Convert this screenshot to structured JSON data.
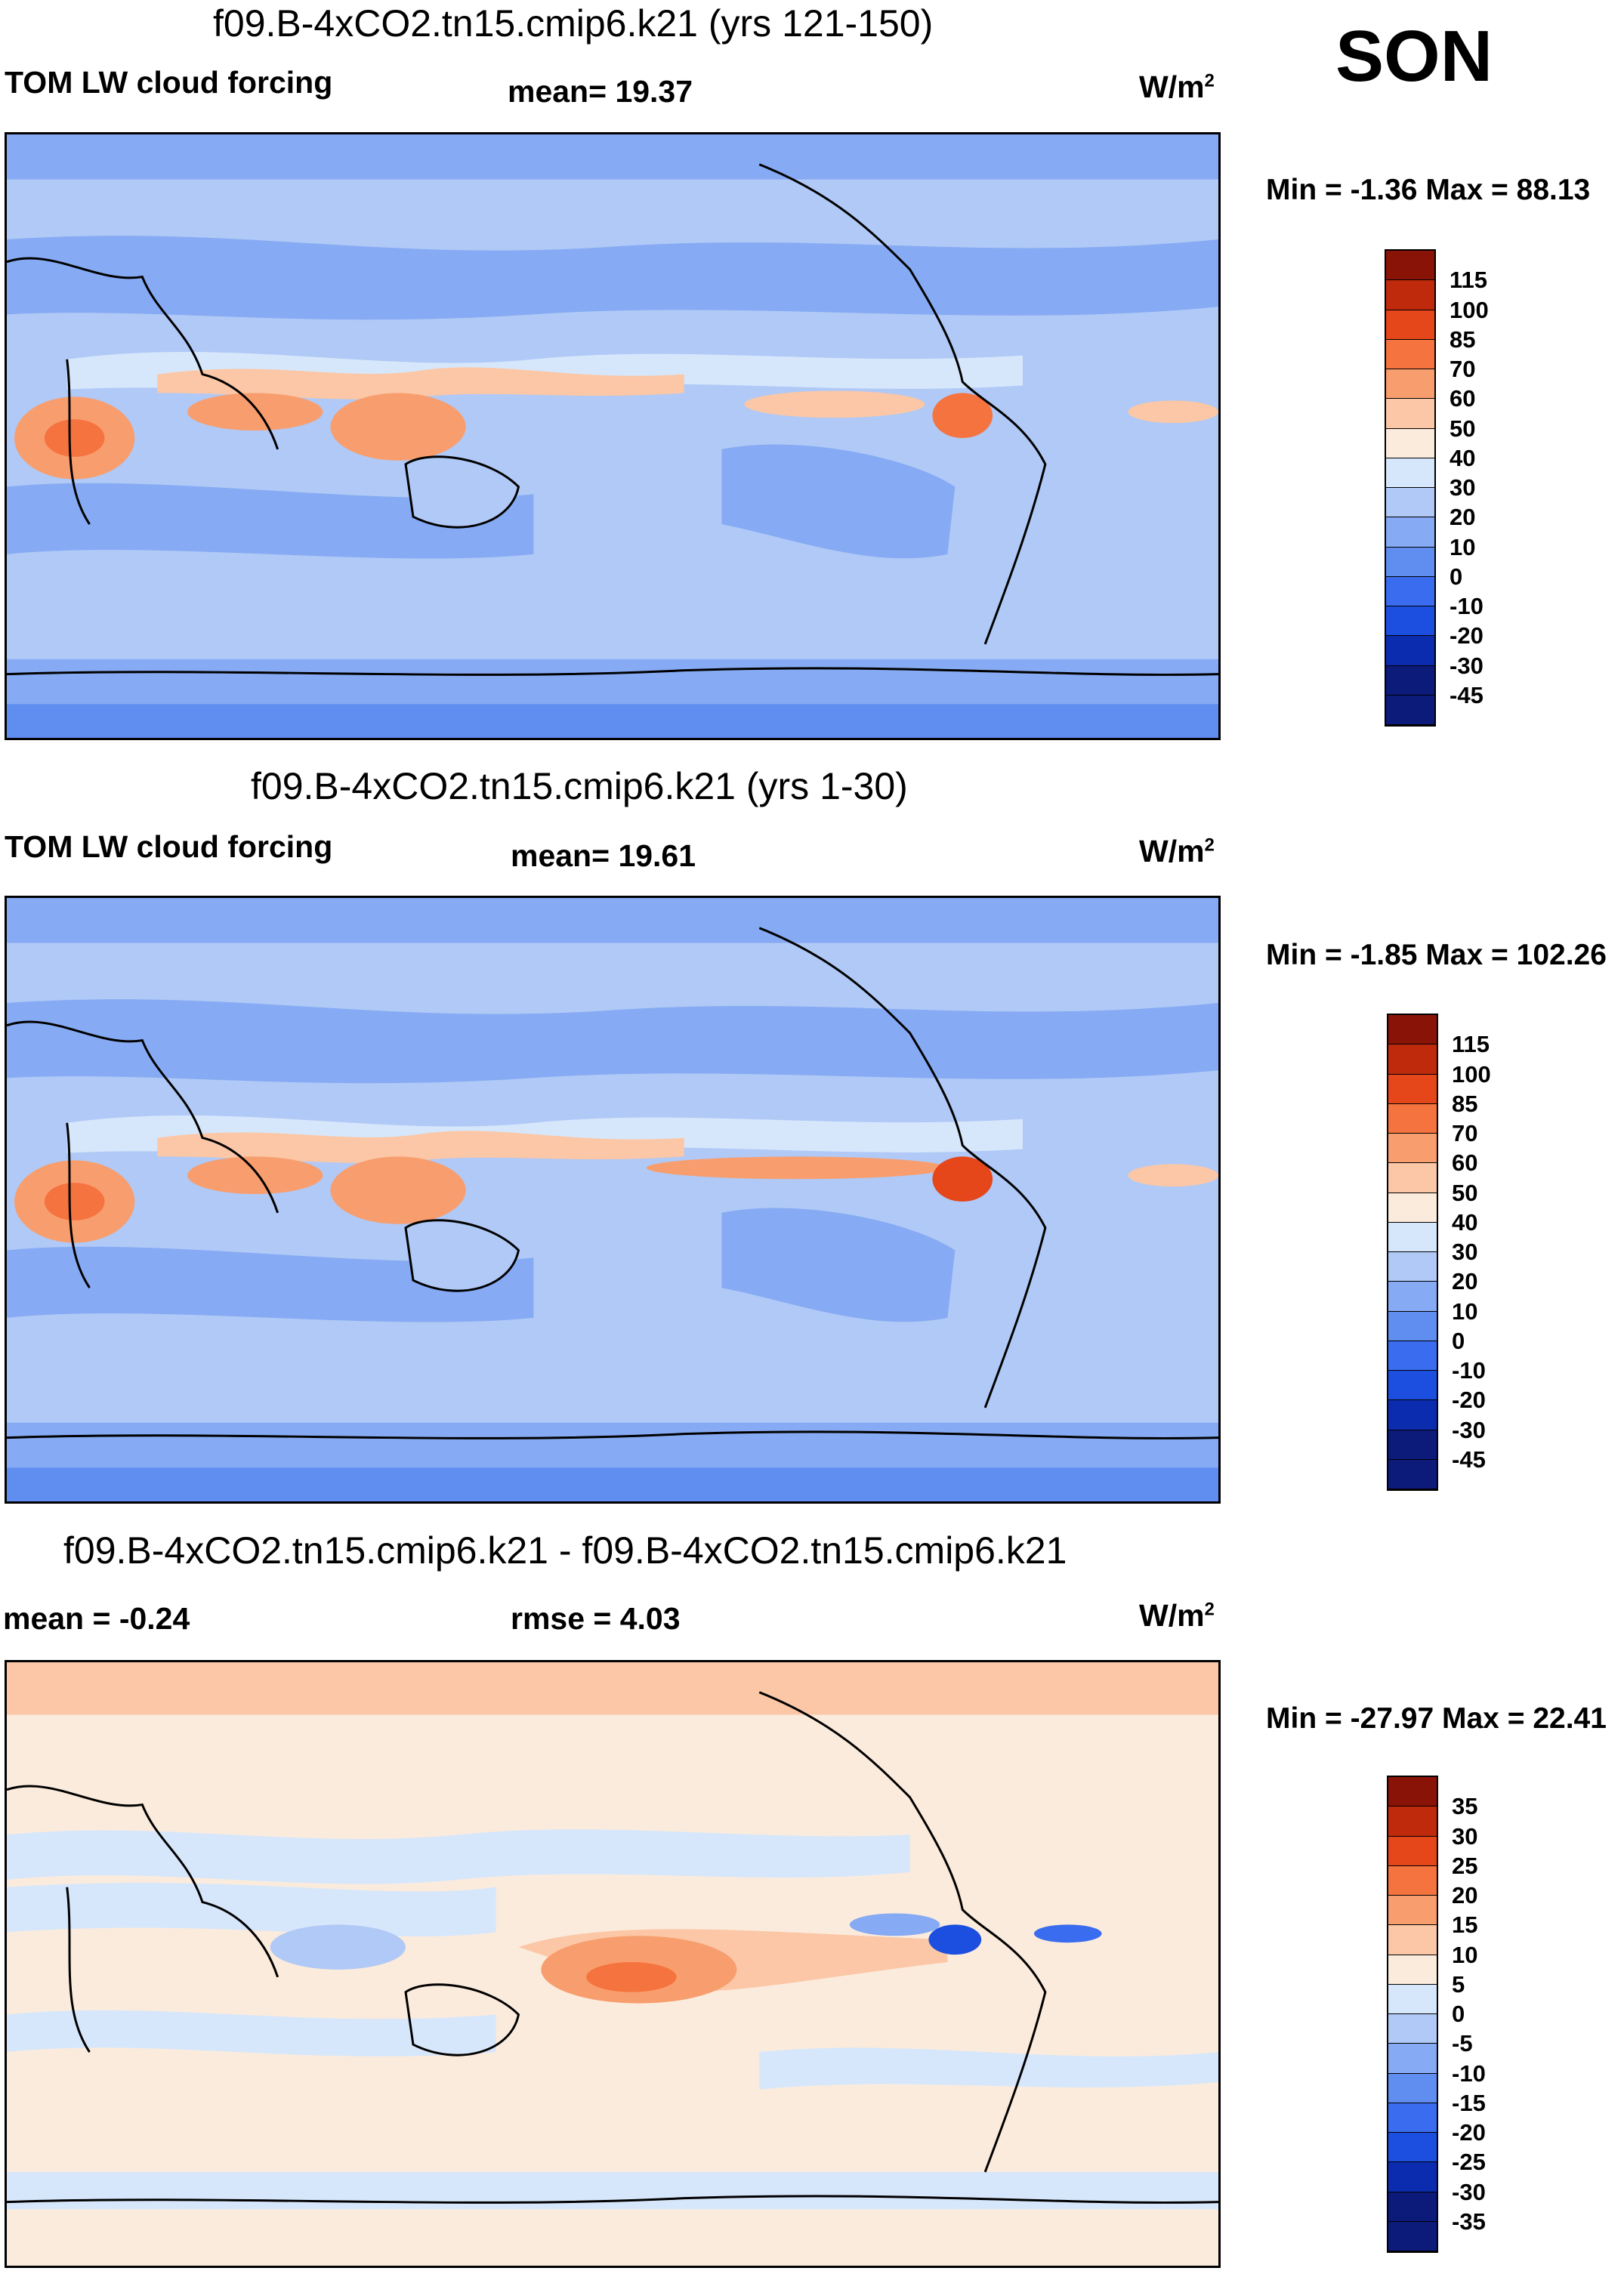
{
  "season": "SON",
  "units_base": "W/m",
  "units_exp": "2",
  "colors": {
    "main": [
      "#0c1a7a",
      "#0c2cb0",
      "#1c4fe0",
      "#3a6cf0",
      "#5f8ef0",
      "#86aaf3",
      "#b0c9f6",
      "#d7e7fb",
      "#fbebdc",
      "#fbc7a6",
      "#f89e6e",
      "#f5733f",
      "#e5461a",
      "#c02a0c",
      "#8a1308"
    ],
    "diff": [
      "#0c1a7a",
      "#0c2cb0",
      "#1c4fe0",
      "#3a6cf0",
      "#5f8ef0",
      "#86aaf3",
      "#b0c9f6",
      "#d7e7fb",
      "#fbebdc",
      "#fbc7a6",
      "#f89e6e",
      "#f5733f",
      "#e5461a",
      "#c02a0c",
      "#8a1308"
    ]
  },
  "panels": [
    {
      "title": "f09.B-4xCO2.tn15.cmip6.k21 (yrs 121-150)",
      "left_label": "TOM LW cloud forcing",
      "mid_label": "mean=  19.37",
      "minmax": "Min =  -1.36 Max =  88.13",
      "ticks": [
        "115",
        "100",
        "85",
        "70",
        "60",
        "50",
        "40",
        "30",
        "20",
        "10",
        "0",
        "-10",
        "-20",
        "-30",
        "-45"
      ]
    },
    {
      "title": "f09.B-4xCO2.tn15.cmip6.k21 (yrs 1-30)",
      "left_label": "TOM LW cloud forcing",
      "mid_label": "mean=  19.61",
      "minmax": "Min =  -1.85 Max = 102.26",
      "ticks": [
        "115",
        "100",
        "85",
        "70",
        "60",
        "50",
        "40",
        "30",
        "20",
        "10",
        "0",
        "-10",
        "-20",
        "-30",
        "-45"
      ]
    },
    {
      "title": "f09.B-4xCO2.tn15.cmip6.k21 - f09.B-4xCO2.tn15.cmip6.k21",
      "left_label": "mean =  -0.24",
      "mid_label": "rmse =    4.03",
      "minmax": "Min = -27.97 Max =  22.41",
      "ticks": [
        "35",
        "30",
        "25",
        "20",
        "15",
        "10",
        "5",
        "0",
        "-5",
        "-10",
        "-15",
        "-20",
        "-25",
        "-30",
        "-35"
      ]
    }
  ],
  "chart_data": [
    {
      "type": "heatmap",
      "title": "f09.B-4xCO2.tn15.cmip6.k21 (yrs 121-150)",
      "variable": "TOM LW cloud forcing",
      "season": "SON",
      "units": "W/m2",
      "mean": 19.37,
      "min": -1.36,
      "max": 88.13,
      "contour_levels": [
        -45,
        -30,
        -20,
        -10,
        0,
        10,
        20,
        30,
        40,
        50,
        60,
        70,
        85,
        100,
        115
      ]
    },
    {
      "type": "heatmap",
      "title": "f09.B-4xCO2.tn15.cmip6.k21 (yrs 1-30)",
      "variable": "TOM LW cloud forcing",
      "season": "SON",
      "units": "W/m2",
      "mean": 19.61,
      "min": -1.85,
      "max": 102.26,
      "contour_levels": [
        -45,
        -30,
        -20,
        -10,
        0,
        10,
        20,
        30,
        40,
        50,
        60,
        70,
        85,
        100,
        115
      ]
    },
    {
      "type": "heatmap",
      "title": "f09.B-4xCO2.tn15.cmip6.k21 - f09.B-4xCO2.tn15.cmip6.k21",
      "season": "SON",
      "units": "W/m2",
      "mean": -0.24,
      "rmse": 4.03,
      "min": -27.97,
      "max": 22.41,
      "contour_levels": [
        -35,
        -30,
        -25,
        -20,
        -15,
        -10,
        -5,
        0,
        5,
        10,
        15,
        20,
        25,
        30,
        35
      ]
    }
  ]
}
